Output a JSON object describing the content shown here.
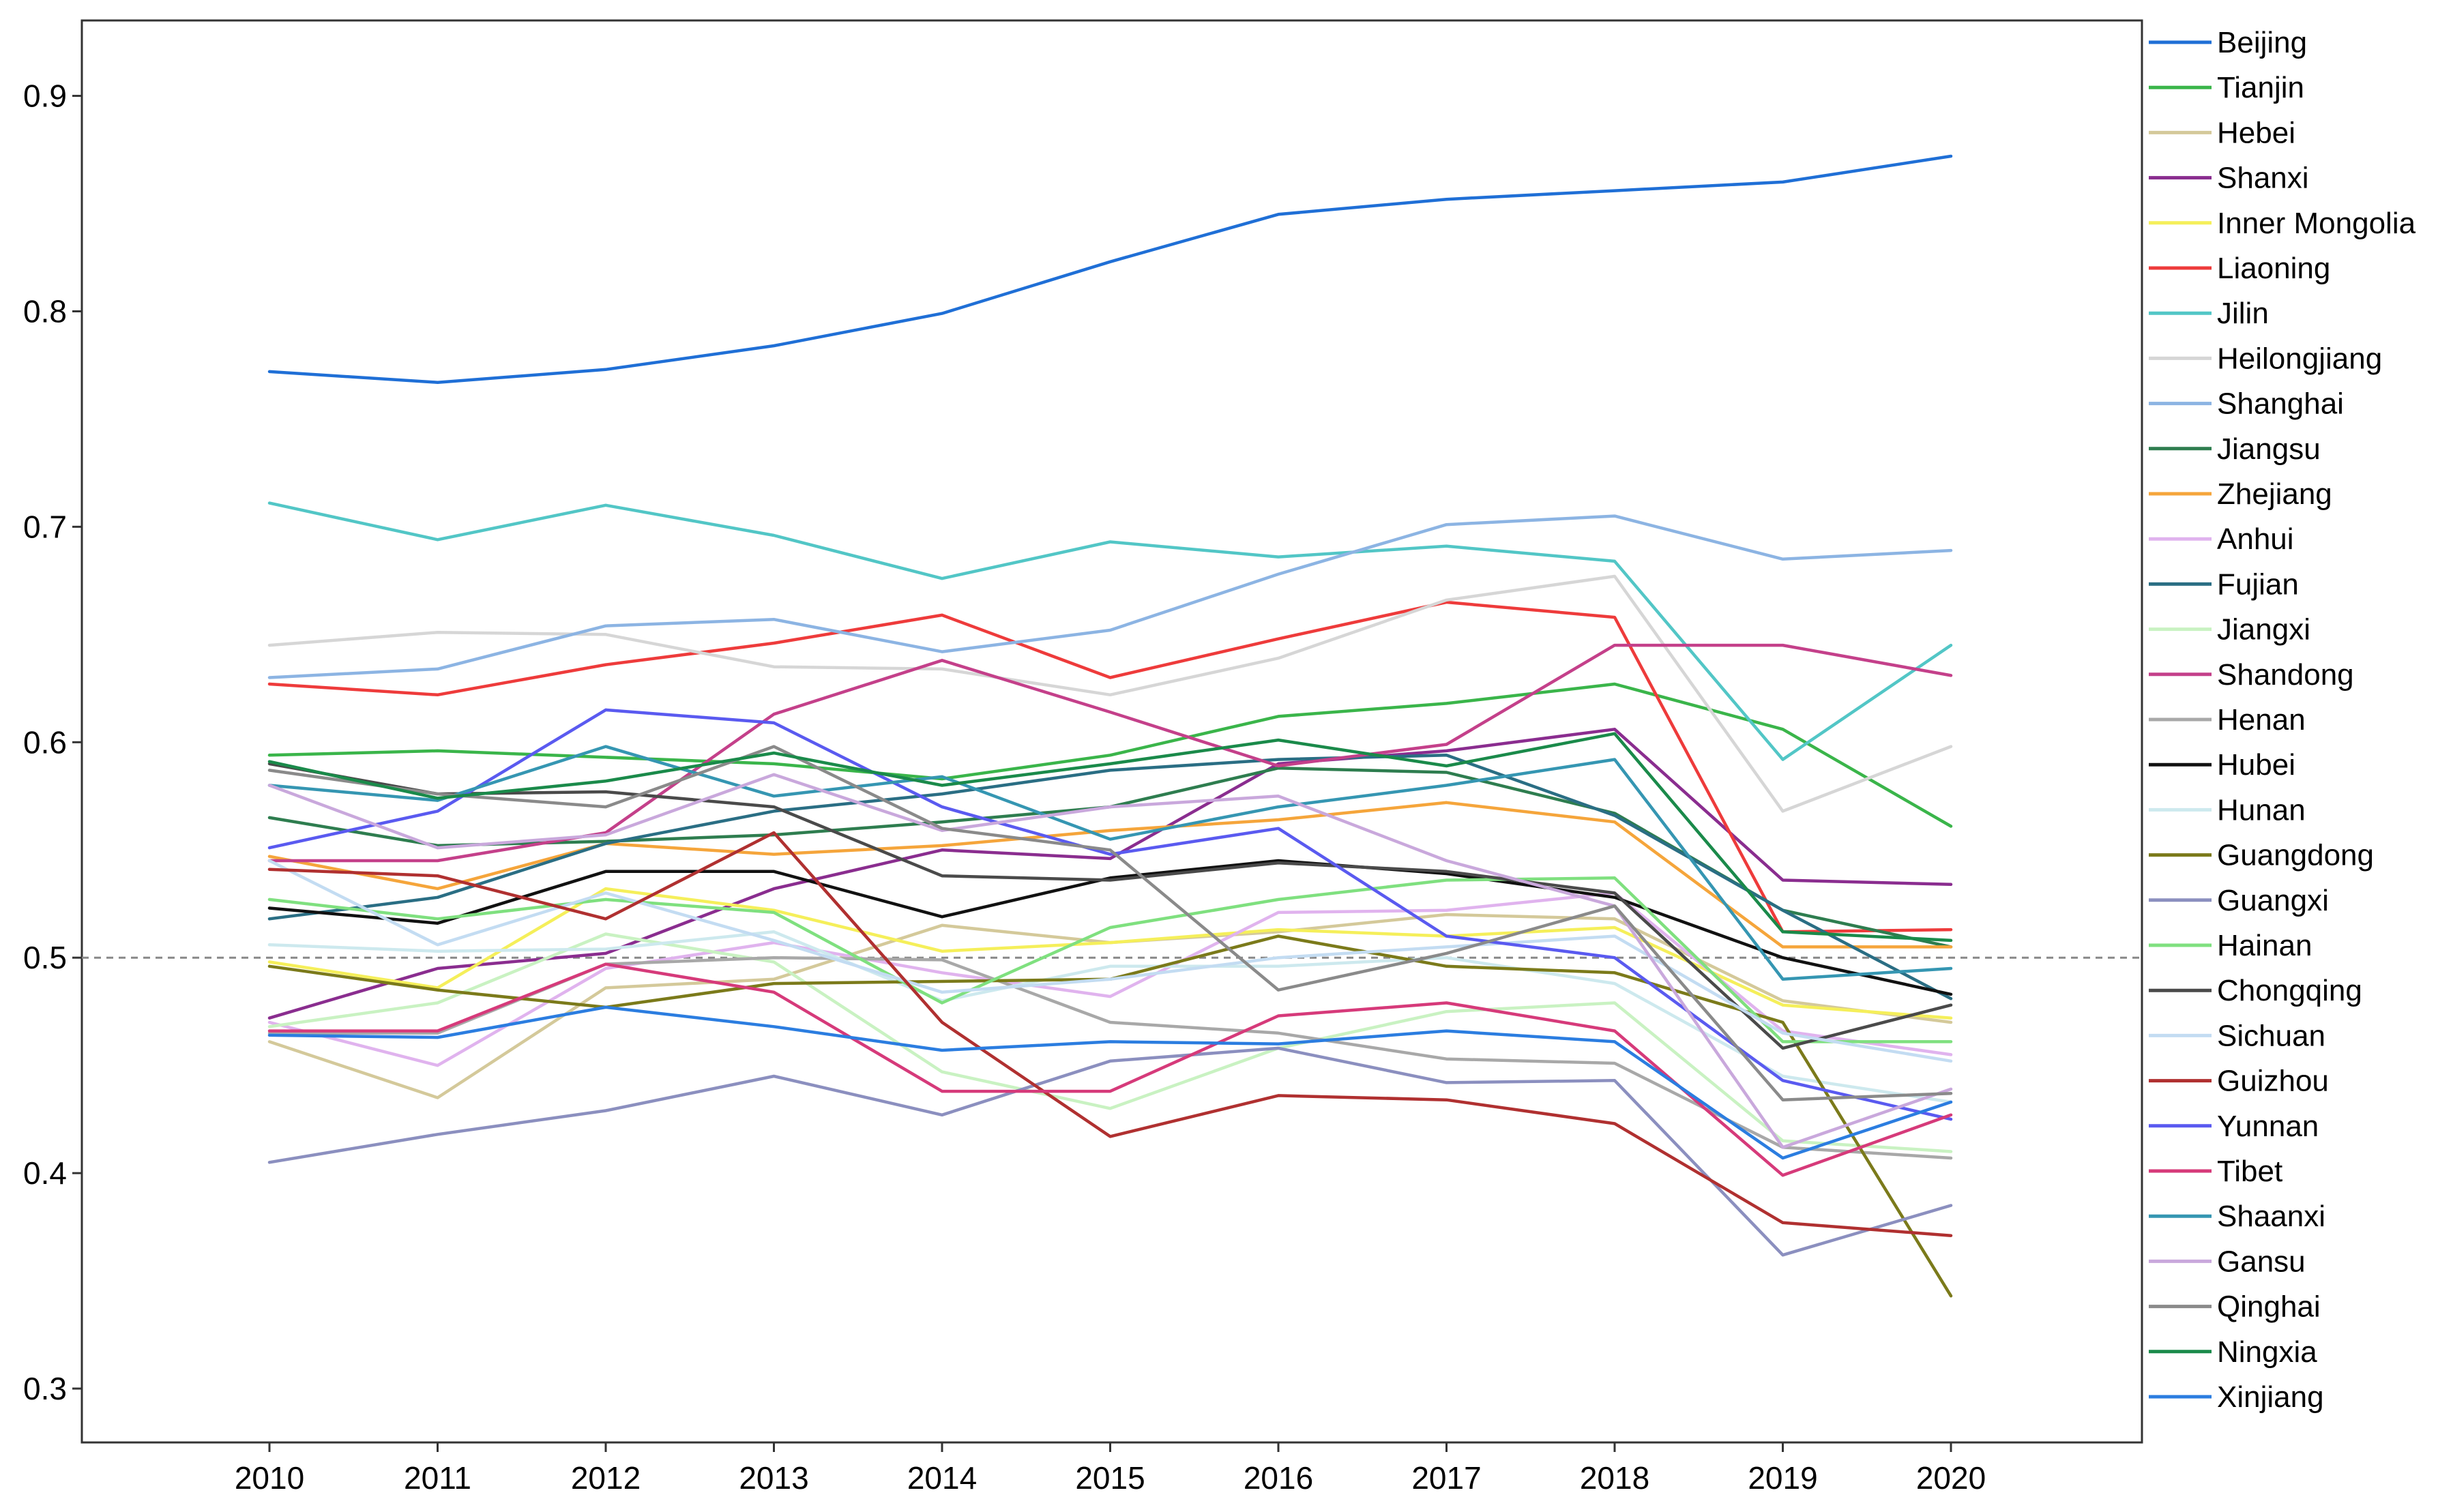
{
  "chart_data": {
    "type": "line",
    "title": "",
    "xlabel": "",
    "ylabel": "",
    "x": [
      2010,
      2011,
      2012,
      2013,
      2014,
      2015,
      2016,
      2017,
      2018,
      2019,
      2020
    ],
    "x_tick_labels": [
      "2010",
      "2011",
      "2012",
      "2013",
      "2014",
      "2015",
      "2016",
      "2017",
      "2018",
      "2019",
      "2020"
    ],
    "ylim": [
      0.275,
      0.935
    ],
    "y_ticks": [
      0.3,
      0.4,
      0.5,
      0.6,
      0.7,
      0.8,
      0.9
    ],
    "y_tick_labels": [
      "0.3",
      "0.4",
      "0.5",
      "0.6",
      "0.7",
      "0.8",
      "0.9"
    ],
    "reference_line": {
      "y": 0.5,
      "style": "dashed",
      "color": "#888888"
    },
    "grid": false,
    "legend_position": "right",
    "series": [
      {
        "name": "Beijing",
        "color": "#1f6fd6",
        "values": [
          0.772,
          0.767,
          0.773,
          0.784,
          0.799,
          0.823,
          0.845,
          0.852,
          0.856,
          0.86,
          0.872
        ]
      },
      {
        "name": "Tianjin",
        "color": "#3ab54a",
        "values": [
          0.594,
          0.596,
          0.593,
          0.59,
          0.583,
          0.594,
          0.612,
          0.618,
          0.627,
          0.606,
          0.561
        ]
      },
      {
        "name": "Hebei",
        "color": "#d4c99a",
        "values": [
          0.461,
          0.435,
          0.486,
          0.49,
          0.515,
          0.507,
          0.512,
          0.52,
          0.518,
          0.48,
          0.47
        ]
      },
      {
        "name": "Shanxi",
        "color": "#8a2d8f",
        "values": [
          0.472,
          0.495,
          0.502,
          0.532,
          0.55,
          0.546,
          0.59,
          0.596,
          0.606,
          0.536,
          0.534
        ]
      },
      {
        "name": "Inner Mongolia",
        "color": "#f5ef5a",
        "values": [
          0.498,
          0.486,
          0.532,
          0.522,
          0.503,
          0.507,
          0.513,
          0.51,
          0.514,
          0.478,
          0.472
        ]
      },
      {
        "name": "Liaoning",
        "color": "#ee3b3b",
        "values": [
          0.627,
          0.622,
          0.636,
          0.646,
          0.659,
          0.63,
          0.648,
          0.665,
          0.658,
          0.512,
          0.513
        ]
      },
      {
        "name": "Jilin",
        "color": "#52c6c6",
        "values": [
          0.711,
          0.694,
          0.71,
          0.696,
          0.676,
          0.693,
          0.686,
          0.691,
          0.684,
          0.592,
          0.645
        ]
      },
      {
        "name": "Heilongjiang",
        "color": "#d6d6d6",
        "values": [
          0.645,
          0.651,
          0.65,
          0.635,
          0.634,
          0.622,
          0.639,
          0.666,
          0.677,
          0.568,
          0.598
        ]
      },
      {
        "name": "Shanghai",
        "color": "#8cb4e3",
        "values": [
          0.63,
          0.634,
          0.654,
          0.657,
          0.642,
          0.652,
          0.678,
          0.701,
          0.705,
          0.685,
          0.689
        ]
      },
      {
        "name": "Jiangsu",
        "color": "#2e7d4f",
        "values": [
          0.565,
          0.552,
          0.554,
          0.557,
          0.563,
          0.57,
          0.588,
          0.586,
          0.567,
          0.522,
          0.505
        ]
      },
      {
        "name": "Zhejiang",
        "color": "#f5a53b",
        "values": [
          0.547,
          0.532,
          0.553,
          0.548,
          0.552,
          0.559,
          0.564,
          0.572,
          0.563,
          0.505,
          0.505
        ]
      },
      {
        "name": "Anhui",
        "color": "#e0b3ee",
        "values": [
          0.47,
          0.45,
          0.495,
          0.507,
          0.493,
          0.482,
          0.521,
          0.522,
          0.53,
          0.466,
          0.455
        ]
      },
      {
        "name": "Fujian",
        "color": "#2a6e84",
        "values": [
          0.518,
          0.528,
          0.553,
          0.568,
          0.576,
          0.587,
          0.592,
          0.594,
          0.566,
          0.522,
          0.481
        ]
      },
      {
        "name": "Jiangxi",
        "color": "#c9f2c2",
        "values": [
          0.468,
          0.479,
          0.511,
          0.498,
          0.447,
          0.43,
          0.458,
          0.475,
          0.479,
          0.415,
          0.41
        ]
      },
      {
        "name": "Shandong",
        "color": "#c4408a",
        "values": [
          0.545,
          0.545,
          0.558,
          0.613,
          0.638,
          0.614,
          0.589,
          0.599,
          0.645,
          0.645,
          0.631
        ]
      },
      {
        "name": "Henan",
        "color": "#a8a8a8",
        "values": [
          0.465,
          0.465,
          0.497,
          0.5,
          0.499,
          0.47,
          0.465,
          0.453,
          0.451,
          0.412,
          0.407
        ]
      },
      {
        "name": "Hubei",
        "color": "#111111",
        "values": [
          0.523,
          0.516,
          0.54,
          0.54,
          0.519,
          0.537,
          0.545,
          0.539,
          0.528,
          0.5,
          0.483
        ]
      },
      {
        "name": "Hunan",
        "color": "#cde9ee",
        "values": [
          0.506,
          0.503,
          0.504,
          0.512,
          0.48,
          0.496,
          0.496,
          0.5,
          0.488,
          0.445,
          0.433
        ]
      },
      {
        "name": "Guangdong",
        "color": "#7b7a1a",
        "values": [
          0.496,
          0.485,
          0.477,
          0.488,
          0.489,
          0.49,
          0.51,
          0.496,
          0.493,
          0.47,
          0.343
        ]
      },
      {
        "name": "Guangxi",
        "color": "#8b8fbf",
        "values": [
          0.405,
          0.418,
          0.429,
          0.445,
          0.427,
          0.452,
          0.458,
          0.442,
          0.443,
          0.362,
          0.385
        ]
      },
      {
        "name": "Hainan",
        "color": "#7fe07f",
        "values": [
          0.527,
          0.518,
          0.527,
          0.521,
          0.479,
          0.514,
          0.527,
          0.536,
          0.537,
          0.461,
          0.461
        ]
      },
      {
        "name": "Chongqing",
        "color": "#4a4a4a",
        "values": [
          0.59,
          0.576,
          0.577,
          0.57,
          0.538,
          0.536,
          0.544,
          0.54,
          0.53,
          0.458,
          0.478
        ]
      },
      {
        "name": "Sichuan",
        "color": "#c3dcf2",
        "values": [
          0.545,
          0.506,
          0.53,
          0.508,
          0.484,
          0.49,
          0.5,
          0.505,
          0.51,
          0.465,
          0.452
        ]
      },
      {
        "name": "Guizhou",
        "color": "#b03030",
        "values": [
          0.541,
          0.538,
          0.518,
          0.558,
          0.47,
          0.417,
          0.436,
          0.434,
          0.423,
          0.377,
          0.371
        ]
      },
      {
        "name": "Yunnan",
        "color": "#5a5af0",
        "values": [
          0.551,
          0.568,
          0.615,
          0.609,
          0.57,
          0.548,
          0.56,
          0.51,
          0.5,
          0.443,
          0.425
        ]
      },
      {
        "name": "Tibet",
        "color": "#d63a7a",
        "values": [
          0.466,
          0.466,
          0.497,
          0.484,
          0.438,
          0.438,
          0.473,
          0.479,
          0.466,
          0.399,
          0.427
        ]
      },
      {
        "name": "Shaanxi",
        "color": "#3596b2",
        "values": [
          0.58,
          0.573,
          0.598,
          0.575,
          0.584,
          0.555,
          0.57,
          0.58,
          0.592,
          0.49,
          0.495
        ]
      },
      {
        "name": "Gansu",
        "color": "#c9a8dc",
        "values": [
          0.58,
          0.551,
          0.557,
          0.585,
          0.559,
          0.57,
          0.575,
          0.545,
          0.524,
          0.412,
          0.439
        ]
      },
      {
        "name": "Qinghai",
        "color": "#8a8a8a",
        "values": [
          0.587,
          0.576,
          0.57,
          0.598,
          0.56,
          0.55,
          0.485,
          0.502,
          0.524,
          0.434,
          0.437
        ]
      },
      {
        "name": "Ningxia",
        "color": "#1a8a4a",
        "values": [
          0.591,
          0.574,
          0.582,
          0.595,
          0.58,
          0.59,
          0.601,
          0.589,
          0.604,
          0.512,
          0.508
        ]
      },
      {
        "name": "Xinjiang",
        "color": "#2b7de0",
        "values": [
          0.464,
          0.463,
          0.477,
          0.468,
          0.457,
          0.461,
          0.46,
          0.466,
          0.461,
          0.407,
          0.433
        ]
      }
    ]
  }
}
